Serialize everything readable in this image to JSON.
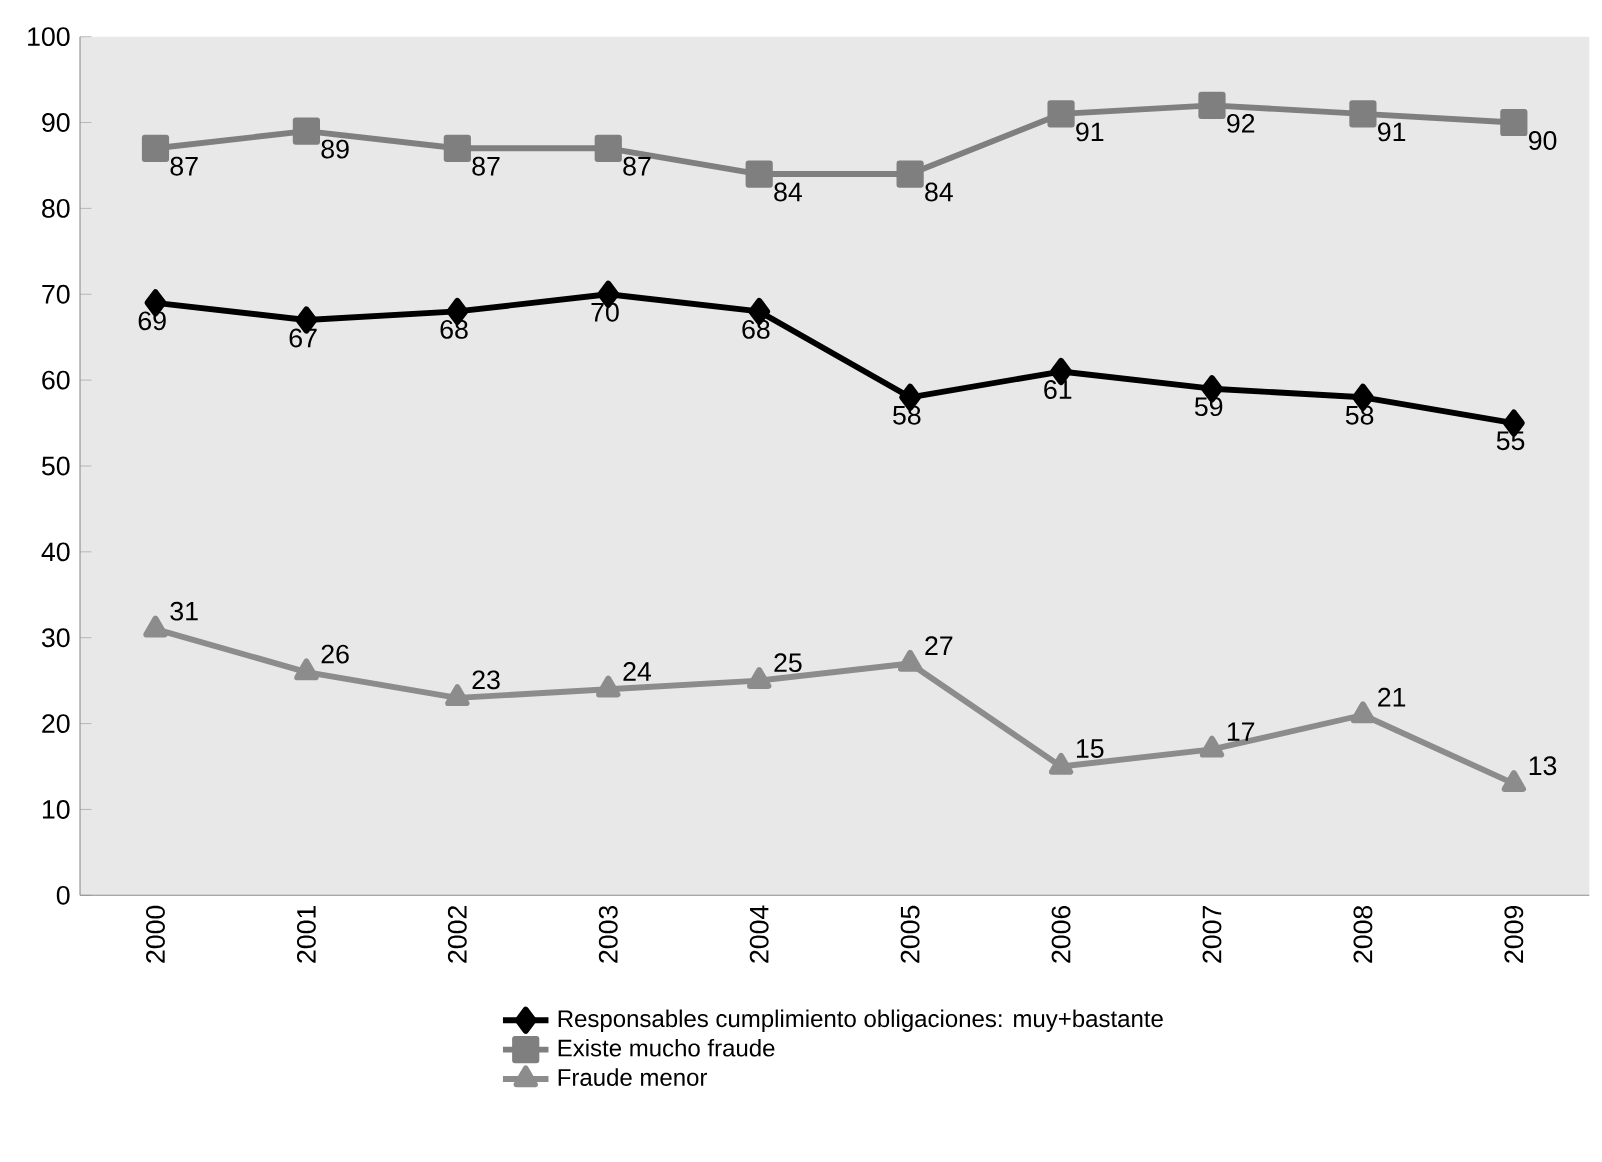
{
  "chart_data": {
    "type": "line",
    "categories": [
      "2000",
      "2001",
      "2002",
      "2003",
      "2004",
      "2005",
      "2006",
      "2007",
      "2008",
      "2009"
    ],
    "series": [
      {
        "name": "Responsables cumplimiento obligaciones: muy+bastante",
        "color": "#000000",
        "marker": "diamond",
        "values": [
          69,
          67,
          68,
          70,
          68,
          58,
          61,
          59,
          58,
          55
        ]
      },
      {
        "name": "Existe mucho fraude",
        "color": "#7f7f7f",
        "marker": "square",
        "values": [
          87,
          89,
          87,
          87,
          84,
          84,
          91,
          92,
          91,
          90
        ]
      },
      {
        "name": "Fraude menor",
        "color": "#8c8c8c",
        "marker": "triangle",
        "values": [
          31,
          26,
          23,
          24,
          25,
          27,
          15,
          17,
          21,
          13
        ]
      }
    ],
    "ylim": [
      0,
      100
    ],
    "yticks": [
      0,
      10,
      20,
      30,
      40,
      50,
      60,
      70,
      80,
      90,
      100
    ],
    "data_labels": true,
    "grid": false,
    "legend": "bottom",
    "line_style": "solid"
  }
}
